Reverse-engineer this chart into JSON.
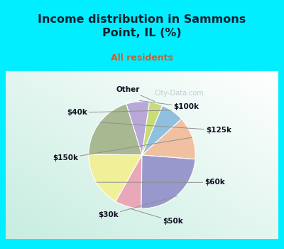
{
  "title": "Income distribution in Sammons\nPoint, IL (%)",
  "subtitle": "All residents",
  "labels": [
    "$100k",
    "$125k",
    "$60k",
    "$50k",
    "$30k",
    "$150k",
    "$40k",
    "Other"
  ],
  "sizes": [
    7,
    20,
    17,
    8,
    24,
    13,
    7,
    4
  ],
  "colors": [
    "#b8a8d8",
    "#a8b890",
    "#f0f098",
    "#e8a8b8",
    "#9898cc",
    "#f0c0a0",
    "#90c0e0",
    "#c8dc78"
  ],
  "bg_top": "#00eeff",
  "title_color": "#102030",
  "subtitle_color": "#cc6030",
  "label_color": "#101020",
  "startangle": 82,
  "watermark": "City-Data.com"
}
